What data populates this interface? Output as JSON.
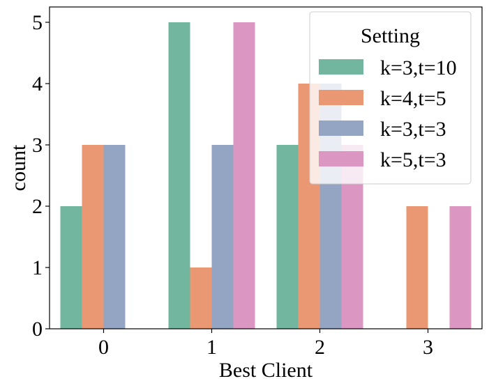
{
  "chart_data": {
    "type": "bar",
    "categories": [
      "0",
      "1",
      "2",
      "3"
    ],
    "series": [
      {
        "name": "k=3,t=10",
        "values": [
          2,
          5,
          3,
          0
        ],
        "color": "#72b6a0"
      },
      {
        "name": "k=4,t=5",
        "values": [
          3,
          1,
          4,
          2
        ],
        "color": "#ea9874"
      },
      {
        "name": "k=3,t=3",
        "values": [
          3,
          3,
          4,
          0
        ],
        "color": "#94a4c3"
      },
      {
        "name": "k=5,t=3",
        "values": [
          0,
          5,
          3,
          2
        ],
        "color": "#dc96c2"
      }
    ],
    "xlabel": "Best Client",
    "ylabel": "count",
    "ylim": [
      0,
      5.25
    ],
    "yticks": [
      "0",
      "1",
      "2",
      "3",
      "4",
      "5"
    ],
    "legend": {
      "title": "Setting",
      "placement": "top-right"
    },
    "grid": false
  }
}
